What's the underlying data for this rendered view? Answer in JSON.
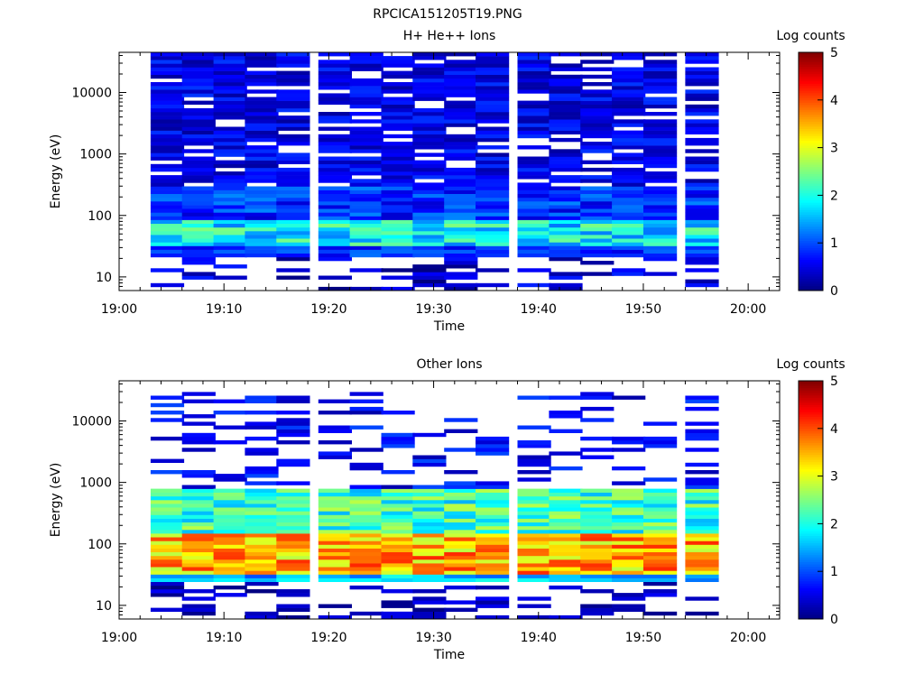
{
  "figure_title": "RPCICA151205T19.PNG",
  "colorbar_label": "Log counts",
  "colormap": [
    "#00007f",
    "#0000ff",
    "#007fff",
    "#00ffff",
    "#7fff7f",
    "#ffff00",
    "#ff7f00",
    "#ff0000",
    "#7f0000"
  ],
  "chart_data": [
    {
      "type": "heatmap",
      "title": "H+ He++ Ions",
      "xlabel": "Time",
      "ylabel": "Energy (eV)",
      "xlim": [
        "19:00",
        "20:03"
      ],
      "xticks": [
        "19:00",
        "19:10",
        "19:20",
        "19:30",
        "19:40",
        "19:50",
        "20:00"
      ],
      "yscale": "log",
      "ylim": [
        6,
        45000
      ],
      "yticks": [
        "10",
        "100",
        "1000",
        "10000"
      ],
      "colorbar": {
        "label": "Log counts",
        "range": [
          0,
          5
        ],
        "ticks": [
          "0",
          "1",
          "2",
          "3",
          "4",
          "5"
        ]
      },
      "time_bins": [
        "19:03",
        "19:06",
        "19:09",
        "19:12",
        "19:15",
        "19:19",
        "19:22",
        "19:25",
        "19:28",
        "19:31",
        "19:34",
        "19:38",
        "19:41",
        "19:44",
        "19:47",
        "19:50",
        "19:54"
      ],
      "energy_bands_eV": [
        {
          "range": [
            6,
            20
          ],
          "log_counts": "sparse, about 0-0.8"
        },
        {
          "range": [
            20,
            30
          ],
          "log_counts": "about 0.5-1.2"
        },
        {
          "range": [
            30,
            80
          ],
          "log_counts": "peak, about 1.2-2.5"
        },
        {
          "range": [
            80,
            300
          ],
          "log_counts": "about 0.5-1.3"
        },
        {
          "range": [
            300,
            45000
          ],
          "log_counts": "about 0.2-0.9, with gaps"
        }
      ]
    },
    {
      "type": "heatmap",
      "title": "Other Ions",
      "xlabel": "Time",
      "ylabel": "Energy (eV)",
      "xlim": [
        "19:00",
        "20:03"
      ],
      "xticks": [
        "19:00",
        "19:10",
        "19:20",
        "19:30",
        "19:40",
        "19:50",
        "20:00"
      ],
      "yscale": "log",
      "ylim": [
        6,
        45000
      ],
      "yticks": [
        "10",
        "100",
        "1000",
        "10000"
      ],
      "colorbar": {
        "label": "Log counts",
        "range": [
          0,
          5
        ],
        "ticks": [
          "0",
          "1",
          "2",
          "3",
          "4",
          "5"
        ]
      },
      "time_bins": [
        "19:03",
        "19:06",
        "19:09",
        "19:12",
        "19:15",
        "19:19",
        "19:22",
        "19:25",
        "19:28",
        "19:31",
        "19:34",
        "19:38",
        "19:41",
        "19:44",
        "19:47",
        "19:50",
        "19:54"
      ],
      "energy_bands_eV": [
        {
          "range": [
            6,
            25
          ],
          "log_counts": "sparse, about 0-0.6"
        },
        {
          "range": [
            25,
            32
          ],
          "log_counts": "about 1.0-2.0"
        },
        {
          "range": [
            32,
            150
          ],
          "log_counts": "peak, about 2.8-4.2"
        },
        {
          "range": [
            150,
            800
          ],
          "log_counts": "about 1.5-2.8"
        },
        {
          "range": [
            800,
            30000
          ],
          "log_counts": "sparse lines, about 0.2-1.0"
        }
      ]
    }
  ]
}
